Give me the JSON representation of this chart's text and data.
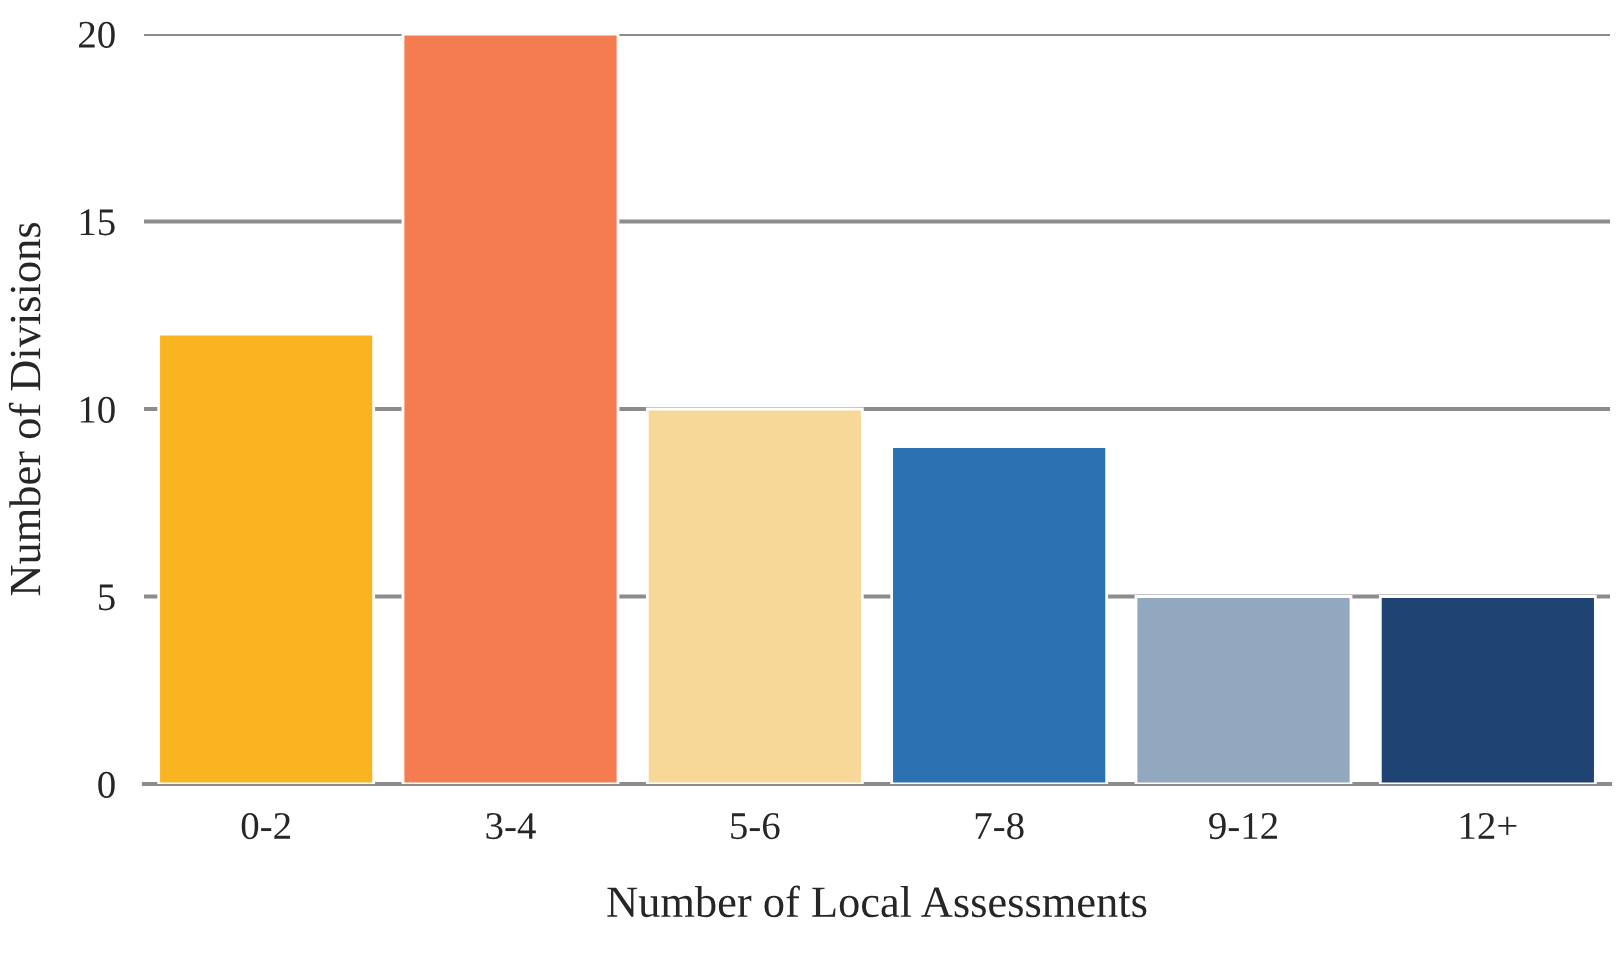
{
  "chart_data": {
    "type": "bar",
    "xlabel": "Number of Local Assessments",
    "ylabel": "Number of Divisions",
    "categories": [
      "0-2",
      "3-4",
      "5-6",
      "7-8",
      "9-12",
      "12+"
    ],
    "values": [
      12,
      20,
      10,
      9,
      5,
      5
    ],
    "colors": [
      "#fab422",
      "#f47c50",
      "#f8d898",
      "#2c71b1",
      "#92a8be",
      "#1f4372"
    ],
    "ylim": [
      0,
      20
    ],
    "yticks": [
      0,
      5,
      10,
      15,
      20
    ],
    "grid": "y",
    "legend": false
  }
}
